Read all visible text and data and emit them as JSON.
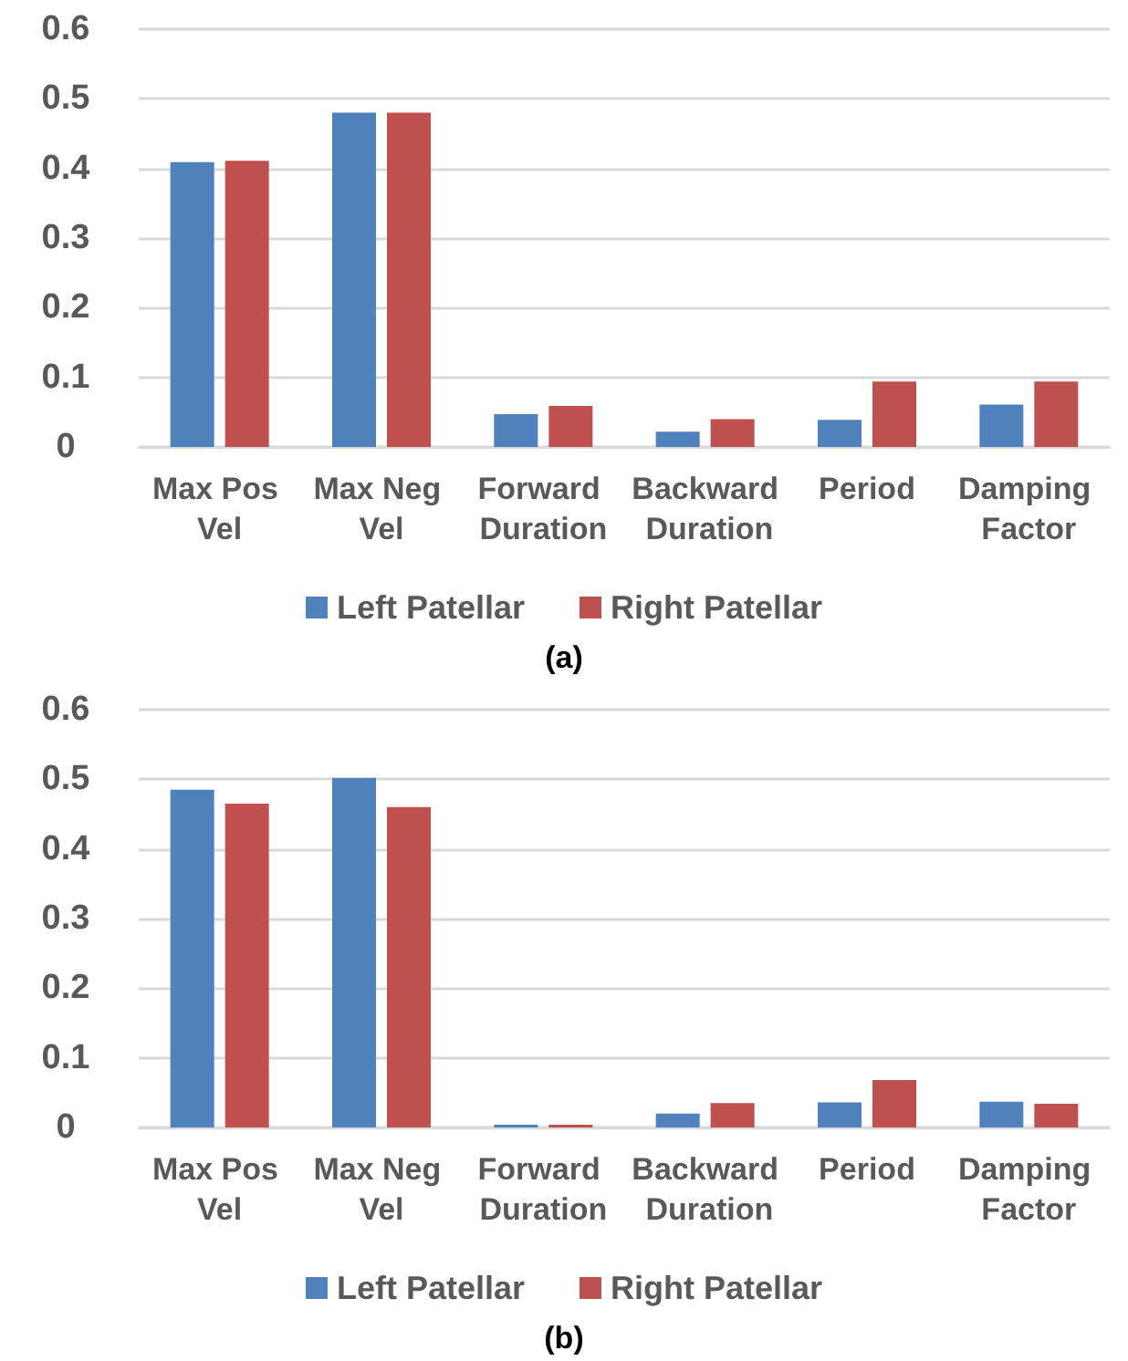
{
  "chart_data": [
    {
      "type": "bar",
      "categories": [
        "Max Pos Vel",
        "Max Neg Vel",
        "Forward Duration",
        "Backward Duration",
        "Period",
        "Damping Factor"
      ],
      "series": [
        {
          "name": "Left Patellar",
          "color": "#4f81bd",
          "values": [
            0.409,
            0.48,
            0.047,
            0.022,
            0.039,
            0.061
          ]
        },
        {
          "name": "Right Patellar",
          "color": "#c0504d",
          "values": [
            0.411,
            0.48,
            0.059,
            0.04,
            0.094,
            0.094
          ]
        }
      ],
      "ylim": [
        0,
        0.6
      ],
      "yticks": [
        0,
        0.1,
        0.2,
        0.3,
        0.4,
        0.5,
        0.6
      ],
      "grid": "y",
      "legend": "bottom",
      "annotations": [
        "(a)"
      ]
    },
    {
      "type": "bar",
      "categories": [
        "Max Pos Vel",
        "Max Neg Vel",
        "Forward Duration",
        "Backward Duration",
        "Period",
        "Damping Factor"
      ],
      "series": [
        {
          "name": "Left Patellar",
          "color": "#4f81bd",
          "values": [
            0.485,
            0.502,
            0.004,
            0.02,
            0.036,
            0.037
          ]
        },
        {
          "name": "Right Patellar",
          "color": "#c0504d",
          "values": [
            0.465,
            0.46,
            0.004,
            0.035,
            0.068,
            0.034
          ]
        }
      ],
      "ylim": [
        0,
        0.6
      ],
      "yticks": [
        0,
        0.1,
        0.2,
        0.3,
        0.4,
        0.5,
        0.6
      ],
      "grid": "y",
      "legend": "bottom",
      "annotations": [
        "(b)"
      ]
    }
  ]
}
